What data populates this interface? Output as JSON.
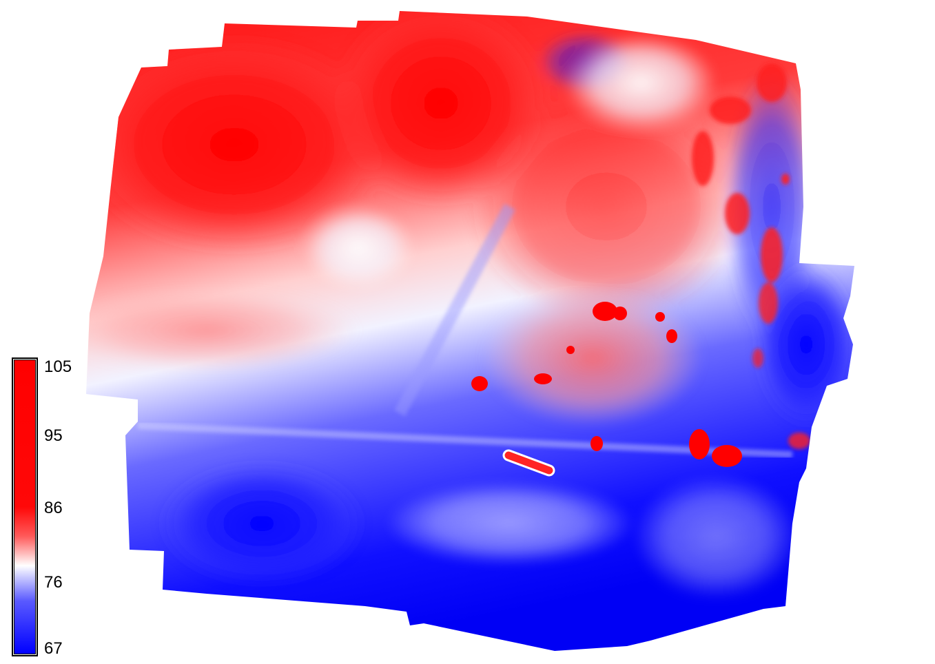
{
  "legend": {
    "ticks": [
      "105",
      "95",
      "86",
      "76",
      "67"
    ],
    "values": [
      105,
      95,
      86,
      76,
      67
    ],
    "range": [
      67,
      105
    ],
    "scale_colors": {
      "high": "#ff0000",
      "upper": "#ff1010",
      "mid": "#ffffff",
      "lower": "#1a1aff",
      "low": "#0000ff"
    }
  }
}
